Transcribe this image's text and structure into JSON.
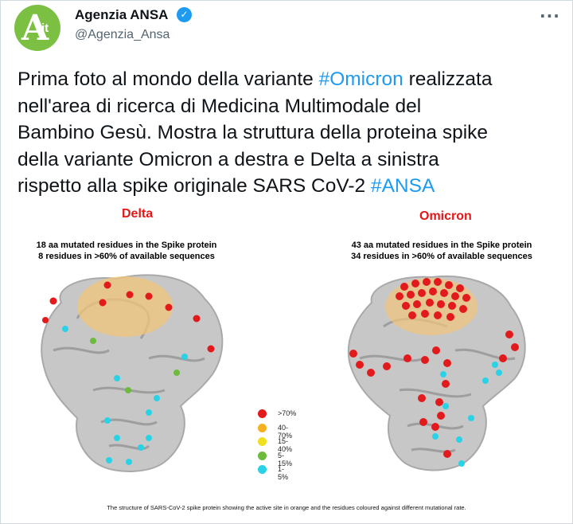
{
  "author": {
    "name": "Agenzia ANSA",
    "handle": "@Agenzia_Ansa",
    "avatar_letter": "A",
    "avatar_suffix": "it"
  },
  "verified_icon": "verified-badge-icon",
  "more_icon": "more-options-icon",
  "tweet": {
    "line1_pre": "Prima foto al mondo della variante ",
    "line1_tag": "#Omicron",
    "line1_post": " realizzata",
    "line2": "nell'area di ricerca di Medicina Multimodale del",
    "line3": "Bambino Gesù. Mostra la struttura della proteina spike",
    "line4": "della variante Omicron a destra e Delta a sinistra",
    "line5_pre": "rispetto alla spike originale SARS CoV-2 ",
    "line5_tag": "#ANSA"
  },
  "figure": {
    "delta": {
      "title": "Delta",
      "sub1": "18 aa mutated residues in the Spike protein",
      "sub2": "8 residues in >60% of available sequences"
    },
    "omicron": {
      "title": "Omicron",
      "sub1": "43 aa mutated residues in the Spike protein",
      "sub2": "34 residues in >60% of available sequences"
    },
    "legend": [
      {
        "label": ">70%",
        "color": "#e31a1c"
      },
      {
        "label": "40-70%",
        "color": "#f5b120"
      },
      {
        "label": "15-40%",
        "color": "#f0e020"
      },
      {
        "label": "5-15%",
        "color": "#6cbb3c"
      },
      {
        "label": "1-5%",
        "color": "#2ad2e6"
      }
    ],
    "caption": "The structure of SARS-CoV-2 spike protein showing the active site in orange and the residues coloured against different mutational rate."
  },
  "colors": {
    "hashtag": "#1d9bf0",
    "avatar_bg": "#7bc043",
    "title_red": "#e21818",
    "protein_gray": "#bdbdbd",
    "active_site": "#f2c57a"
  }
}
